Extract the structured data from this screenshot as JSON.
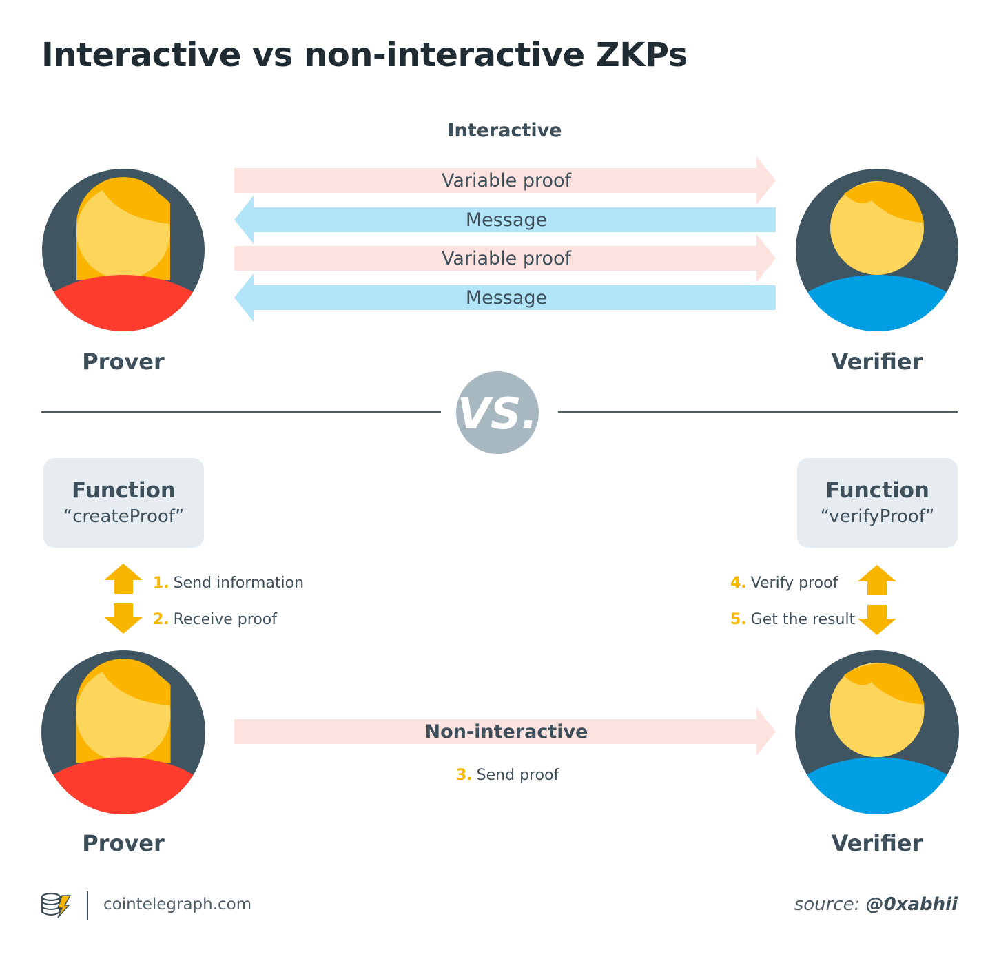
{
  "title": "Interactive vs non-interactive ZKPs",
  "interactive": {
    "section_label": "Interactive",
    "arrows": [
      {
        "label": "Variable proof",
        "direction": "right",
        "color": "#fde3df"
      },
      {
        "label": "Message",
        "direction": "left",
        "color": "#b3e5f9"
      },
      {
        "label": "Variable proof",
        "direction": "right",
        "color": "#fde3df"
      },
      {
        "label": "Message",
        "direction": "left",
        "color": "#b3e5f9"
      }
    ],
    "prover_label": "Prover",
    "verifier_label": "Verifier"
  },
  "vs_label": "VS.",
  "non_interactive": {
    "prover_function": {
      "heading": "Function",
      "name": "“createProof”"
    },
    "verifier_function": {
      "heading": "Function",
      "name": "“verifyProof”"
    },
    "steps": {
      "s1": {
        "num": "1.",
        "text": "Send information"
      },
      "s2": {
        "num": "2.",
        "text": "Receive proof"
      },
      "s3": {
        "num": "3.",
        "text": "Send proof"
      },
      "s4": {
        "num": "4.",
        "text": "Verify proof"
      },
      "s5": {
        "num": "5.",
        "text": "Get the result"
      }
    },
    "arrow_label": "Non-interactive",
    "prover_label": "Prover",
    "verifier_label": "Verifier"
  },
  "footer": {
    "brand": "cointelegraph.com",
    "source_prefix": "source:",
    "source_handle": "@0xabhii"
  },
  "colors": {
    "avatar_bg": "#3f5562",
    "hair": "#fbb400",
    "face": "#fdd55a",
    "prover_body": "#ff3d2e",
    "verifier_body": "#009fe3",
    "accent": "#f7b500",
    "vs_badge": "#a8b8c0"
  }
}
